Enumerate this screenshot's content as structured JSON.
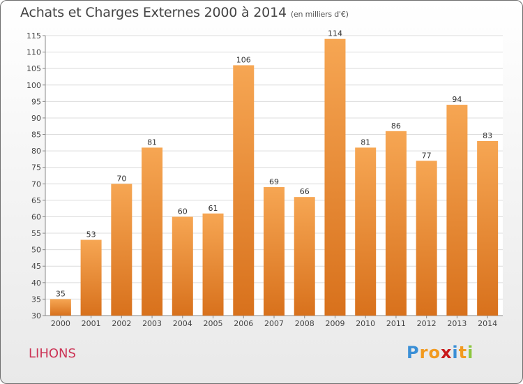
{
  "title": "Achats et Charges Externes 2000 à 2014",
  "subtitle": "(en milliers d'€)",
  "commune": "LIHONS",
  "logo": {
    "text": "Proxiti",
    "colors": [
      "#3a8fd6",
      "#f29a1f",
      "#f29a1f",
      "#c8181a",
      "#3a8fd6",
      "#f29a1f",
      "#8cc63f"
    ]
  },
  "chart_data": {
    "type": "bar",
    "categories": [
      "2000",
      "2001",
      "2002",
      "2003",
      "2004",
      "2005",
      "2006",
      "2007",
      "2008",
      "2009",
      "2010",
      "2011",
      "2012",
      "2013",
      "2014"
    ],
    "values": [
      35,
      53,
      70,
      81,
      60,
      61,
      106,
      69,
      66,
      114,
      81,
      86,
      77,
      94,
      83
    ],
    "ylim": [
      30,
      115
    ],
    "yticks": [
      30,
      35,
      40,
      45,
      50,
      55,
      60,
      65,
      70,
      75,
      80,
      85,
      90,
      95,
      100,
      105,
      110,
      115
    ],
    "grid": true,
    "bar_color": "#f0882e"
  }
}
